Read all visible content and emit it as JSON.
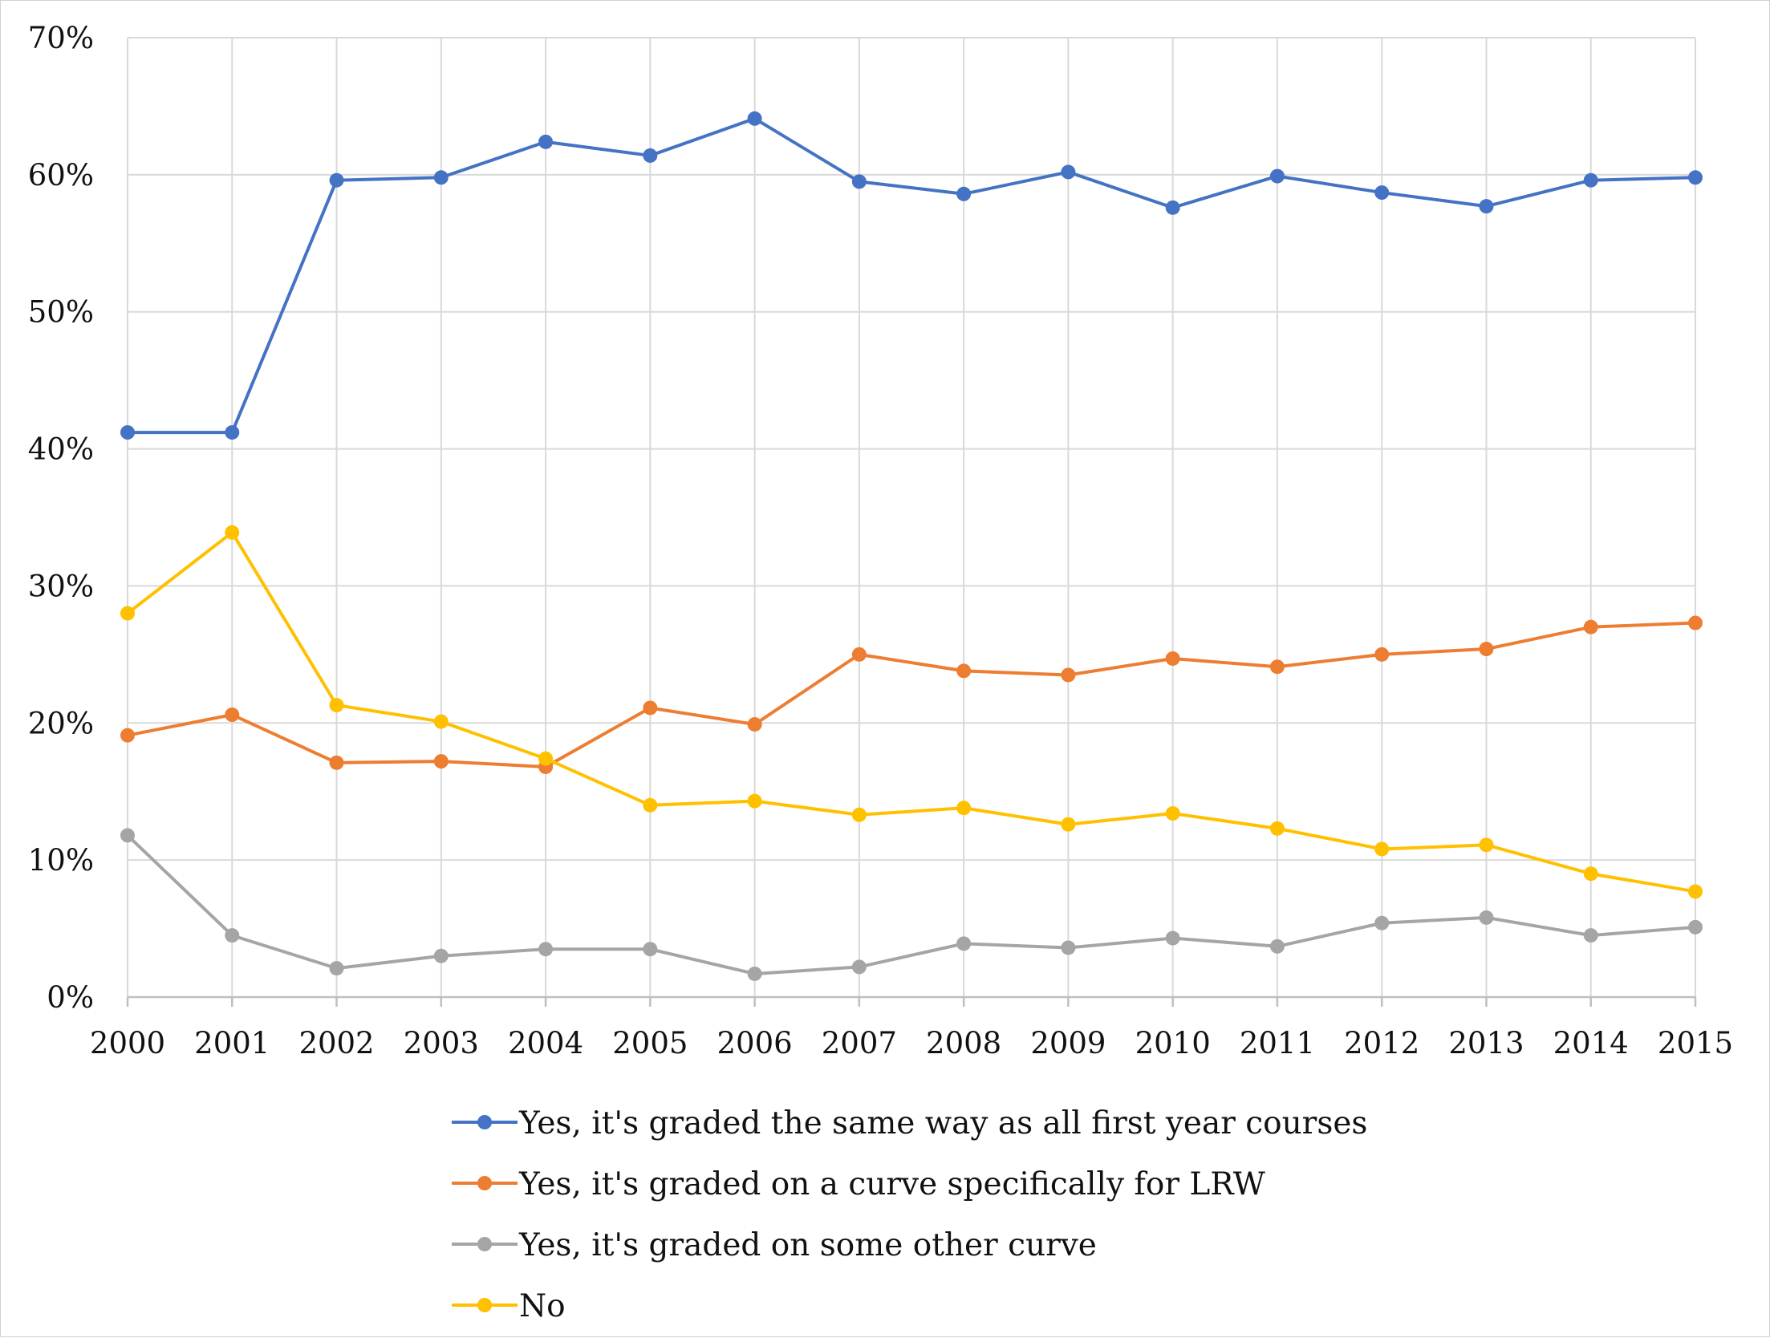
{
  "chart_data": {
    "type": "line",
    "title": "",
    "xlabel": "",
    "ylabel": "",
    "x": [
      "2000",
      "2001",
      "2002",
      "2003",
      "2004",
      "2005",
      "2006",
      "2007",
      "2008",
      "2009",
      "2010",
      "2011",
      "2012",
      "2013",
      "2014",
      "2015"
    ],
    "ylim": [
      0,
      70
    ],
    "y_ticks": [
      0,
      10,
      20,
      30,
      40,
      50,
      60,
      70
    ],
    "y_tick_format": "percent",
    "grid": true,
    "legend_position": "bottom",
    "series": [
      {
        "name": "Yes, it's graded the same way as all first year courses",
        "color": "#4472C4",
        "values": [
          41.2,
          41.2,
          59.6,
          59.8,
          62.4,
          61.4,
          64.1,
          59.5,
          58.6,
          60.2,
          57.6,
          59.9,
          58.7,
          57.7,
          59.6,
          59.8
        ]
      },
      {
        "name": "Yes, it's graded on a curve specifically for LRW",
        "color": "#ED7D31",
        "values": [
          19.1,
          20.6,
          17.1,
          17.2,
          16.8,
          21.1,
          19.9,
          25.0,
          23.8,
          23.5,
          24.7,
          24.1,
          25.0,
          25.4,
          27.0,
          27.3
        ]
      },
      {
        "name": "Yes, it's graded on some other curve",
        "color": "#A5A5A5",
        "values": [
          11.8,
          4.5,
          2.1,
          3.0,
          3.5,
          3.5,
          1.7,
          2.2,
          3.9,
          3.6,
          4.3,
          3.7,
          5.4,
          5.8,
          4.5,
          5.1
        ]
      },
      {
        "name": "No",
        "color": "#FFC000",
        "values": [
          28.0,
          33.9,
          21.3,
          20.1,
          17.4,
          14.0,
          14.3,
          13.3,
          13.8,
          12.6,
          13.4,
          12.3,
          10.8,
          11.1,
          9.0,
          7.7
        ]
      }
    ]
  }
}
